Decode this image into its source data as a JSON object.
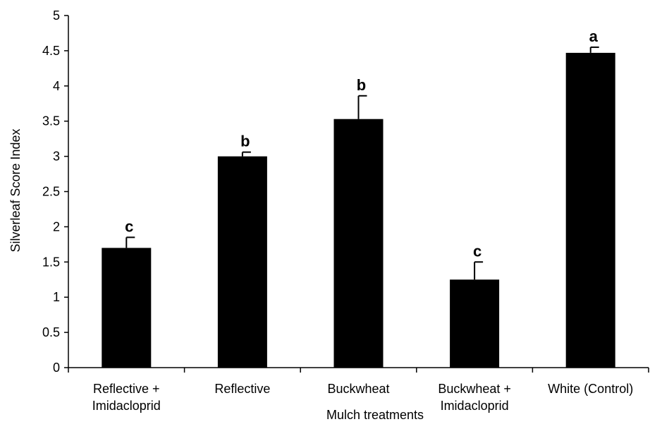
{
  "chart_data": {
    "type": "bar",
    "categories": [
      [
        "Reflective +",
        "Imidacloprid"
      ],
      [
        "Reflective"
      ],
      [
        "Buckwheat"
      ],
      [
        "Buckwheat +",
        "Imidacloprid"
      ],
      [
        "White (Control)"
      ]
    ],
    "values": [
      1.7,
      3.0,
      3.53,
      1.25,
      4.47
    ],
    "error_upper": [
      0.15,
      0.06,
      0.33,
      0.25,
      0.08
    ],
    "significance_letters": [
      "c",
      "b",
      "b",
      "c",
      "a"
    ],
    "xlabel": "Mulch treatments",
    "ylabel": "Silverleaf Score Index",
    "ylim": [
      0,
      5
    ],
    "yticks": [
      "0",
      "0.5",
      "1",
      "1.5",
      "2",
      "2.5",
      "3",
      "3.5",
      "4",
      "4.5",
      "5"
    ],
    "bar_color": "#000000",
    "grid": false,
    "legend": "none"
  }
}
